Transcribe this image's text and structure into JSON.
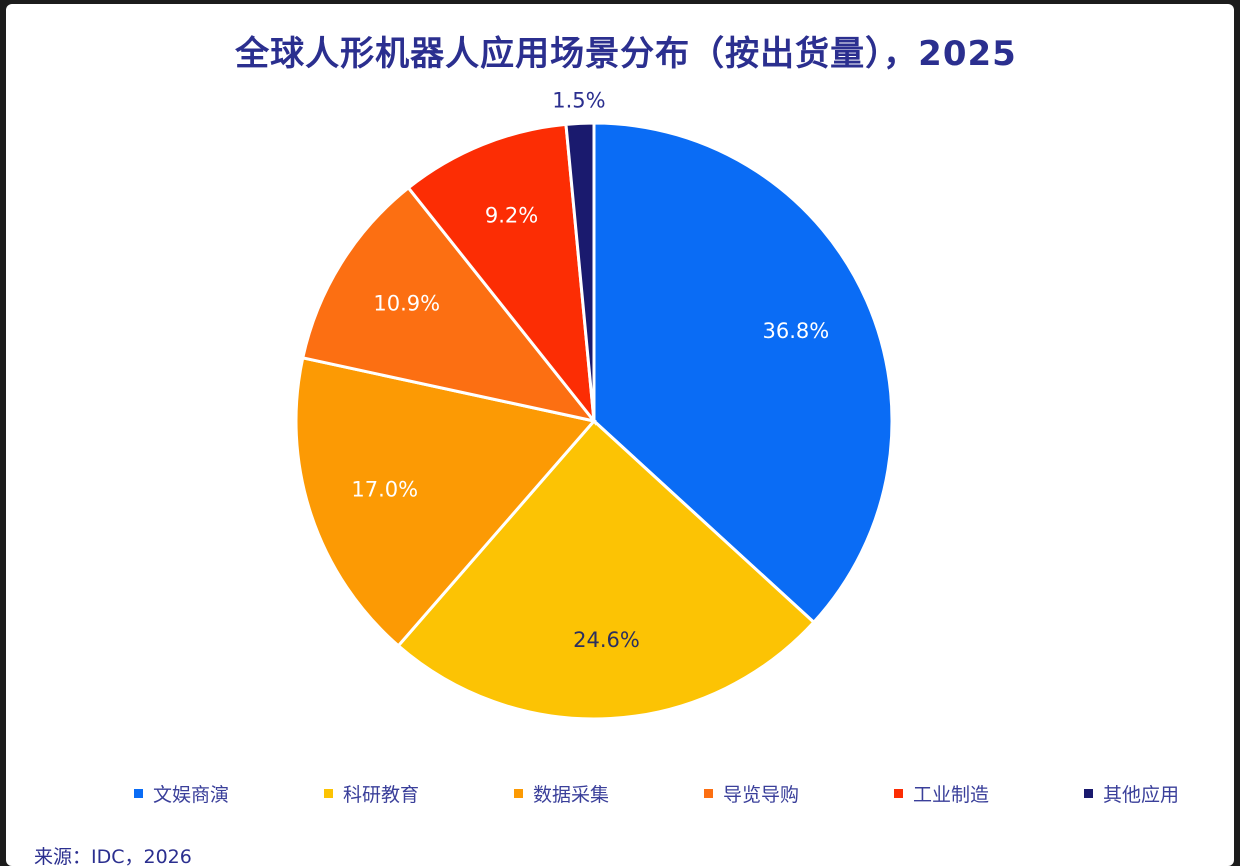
{
  "chart_data": {
    "type": "pie",
    "title": "全球人形机器人应用场景分布（按出货量），2025",
    "unit": "%",
    "slices": [
      {
        "name": "文娱商演",
        "value": 36.8,
        "label": "36.8%",
        "color": "#0a6cf5",
        "label_color": "#ffffff"
      },
      {
        "name": "科研教育",
        "value": 24.6,
        "label": "24.6%",
        "color": "#fcc304",
        "label_color": "#2b2f5f"
      },
      {
        "name": "数据采集",
        "value": 17.0,
        "label": "17.0%",
        "color": "#fc9a04",
        "label_color": "#ffffff"
      },
      {
        "name": "导览导购",
        "value": 10.9,
        "label": "10.9%",
        "color": "#fc6f12",
        "label_color": "#ffffff"
      },
      {
        "name": "工业制造",
        "value": 9.2,
        "label": "9.2%",
        "color": "#fc2d04",
        "label_color": "#ffffff"
      },
      {
        "name": "其他应用",
        "value": 1.5,
        "label": "1.5%",
        "color": "#1a1a6e",
        "label_color": "#2b2f8f"
      }
    ],
    "legend_position": "bottom",
    "source": "来源：IDC，2026"
  }
}
